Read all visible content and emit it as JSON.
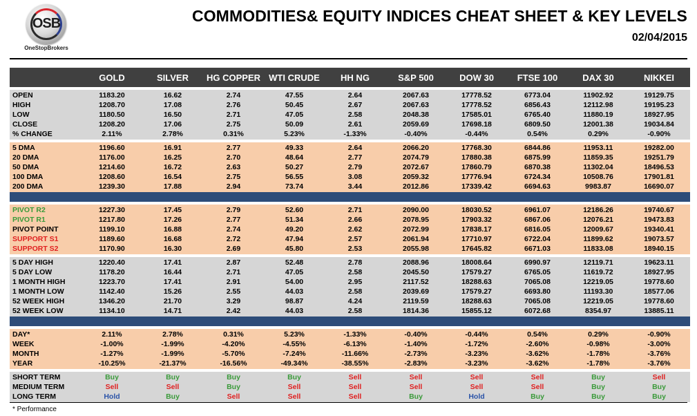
{
  "header": {
    "title": "COMMODITIES& EQUITY INDICES CHEAT SHEET & KEY LEVELS",
    "date": "02/04/2015",
    "logo_mark": "OSB",
    "logo_text": "OneStopBrokers"
  },
  "columns": [
    "GOLD",
    "SILVER",
    "HG COPPER",
    "WTI CRUDE",
    "HH NG",
    "S&P 500",
    "DOW 30",
    "FTSE 100",
    "DAX 30",
    "NIKKEI"
  ],
  "groups": [
    {
      "style": "gray",
      "rows": [
        {
          "label": "OPEN",
          "values": [
            "1183.20",
            "16.62",
            "2.74",
            "47.55",
            "2.64",
            "2067.63",
            "17778.52",
            "6773.04",
            "11902.92",
            "19129.75"
          ]
        },
        {
          "label": "HIGH",
          "values": [
            "1208.70",
            "17.08",
            "2.76",
            "50.45",
            "2.67",
            "2067.63",
            "17778.52",
            "6856.43",
            "12112.98",
            "19195.23"
          ]
        },
        {
          "label": "LOW",
          "values": [
            "1180.50",
            "16.50",
            "2.71",
            "47.05",
            "2.58",
            "2048.38",
            "17585.01",
            "6765.40",
            "11880.19",
            "18927.95"
          ]
        },
        {
          "label": "CLOSE",
          "values": [
            "1208.20",
            "17.06",
            "2.75",
            "50.09",
            "2.61",
            "2059.69",
            "17698.18",
            "6809.50",
            "12001.38",
            "19034.84"
          ]
        },
        {
          "label": "% CHANGE",
          "values": [
            "2.11%",
            "2.78%",
            "0.31%",
            "5.23%",
            "-1.33%",
            "-0.40%",
            "-0.44%",
            "0.54%",
            "0.29%",
            "-0.90%"
          ]
        }
      ]
    },
    {
      "style": "peach",
      "rows": [
        {
          "label": "5 DMA",
          "values": [
            "1196.60",
            "16.91",
            "2.77",
            "49.33",
            "2.64",
            "2066.20",
            "17768.30",
            "6844.86",
            "11953.11",
            "19282.00"
          ]
        },
        {
          "label": "20 DMA",
          "values": [
            "1176.00",
            "16.25",
            "2.70",
            "48.64",
            "2.77",
            "2074.79",
            "17880.38",
            "6875.99",
            "11859.35",
            "19251.79"
          ]
        },
        {
          "label": "50 DMA",
          "values": [
            "1214.60",
            "16.72",
            "2.63",
            "50.27",
            "2.79",
            "2072.67",
            "17860.79",
            "6870.38",
            "11302.04",
            "18496.53"
          ]
        },
        {
          "label": "100 DMA",
          "values": [
            "1208.60",
            "16.54",
            "2.75",
            "56.55",
            "3.08",
            "2059.32",
            "17776.94",
            "6724.34",
            "10508.76",
            "17901.81"
          ]
        },
        {
          "label": "200 DMA",
          "values": [
            "1239.30",
            "17.88",
            "2.94",
            "73.74",
            "3.44",
            "2012.86",
            "17339.42",
            "6694.63",
            "9983.87",
            "16690.07"
          ]
        }
      ]
    },
    {
      "style": "peach",
      "sep_before": true,
      "rows": [
        {
          "label": "PIVOT R2",
          "color": "green",
          "values": [
            "1227.30",
            "17.45",
            "2.79",
            "52.60",
            "2.71",
            "2090.00",
            "18030.52",
            "6961.07",
            "12186.26",
            "19740.67"
          ]
        },
        {
          "label": "PIVOT R1",
          "color": "green",
          "values": [
            "1217.80",
            "17.26",
            "2.77",
            "51.34",
            "2.66",
            "2078.95",
            "17903.32",
            "6867.06",
            "12076.21",
            "19473.83"
          ]
        },
        {
          "label": "PIVOT POINT",
          "values": [
            "1199.10",
            "16.88",
            "2.74",
            "49.20",
            "2.62",
            "2072.99",
            "17838.17",
            "6816.05",
            "12009.67",
            "19340.41"
          ]
        },
        {
          "label": "SUPPORT S1",
          "color": "red",
          "values": [
            "1189.60",
            "16.68",
            "2.72",
            "47.94",
            "2.57",
            "2061.94",
            "17710.97",
            "6722.04",
            "11899.62",
            "19073.57"
          ]
        },
        {
          "label": "SUPPORT S2",
          "color": "red",
          "values": [
            "1170.90",
            "16.30",
            "2.69",
            "45.80",
            "2.53",
            "2055.98",
            "17645.82",
            "6671.03",
            "11833.08",
            "18940.15"
          ]
        }
      ]
    },
    {
      "style": "gray",
      "rows": [
        {
          "label": "5 DAY HIGH",
          "values": [
            "1220.40",
            "17.41",
            "2.87",
            "52.48",
            "2.78",
            "2088.96",
            "18008.64",
            "6990.97",
            "12119.71",
            "19623.11"
          ]
        },
        {
          "label": "5 DAY LOW",
          "values": [
            "1178.20",
            "16.44",
            "2.71",
            "47.05",
            "2.58",
            "2045.50",
            "17579.27",
            "6765.05",
            "11619.72",
            "18927.95"
          ]
        },
        {
          "label": "1 MONTH HIGH",
          "values": [
            "1223.70",
            "17.41",
            "2.91",
            "54.00",
            "2.95",
            "2117.52",
            "18288.63",
            "7065.08",
            "12219.05",
            "19778.60"
          ]
        },
        {
          "label": "1 MONTH LOW",
          "values": [
            "1142.40",
            "15.26",
            "2.55",
            "44.03",
            "2.58",
            "2039.69",
            "17579.27",
            "6693.80",
            "11193.30",
            "18577.06"
          ]
        },
        {
          "label": "52 WEEK HIGH",
          "values": [
            "1346.20",
            "21.70",
            "3.29",
            "98.87",
            "4.24",
            "2119.59",
            "18288.63",
            "7065.08",
            "12219.05",
            "19778.60"
          ]
        },
        {
          "label": "52 WEEK LOW",
          "values": [
            "1134.10",
            "14.71",
            "2.42",
            "44.03",
            "2.58",
            "1814.36",
            "15855.12",
            "6072.68",
            "8354.97",
            "13885.11"
          ]
        }
      ]
    },
    {
      "style": "peach",
      "sep_before": true,
      "rows": [
        {
          "label": "DAY*",
          "values": [
            "2.11%",
            "2.78%",
            "0.31%",
            "5.23%",
            "-1.33%",
            "-0.40%",
            "-0.44%",
            "0.54%",
            "0.29%",
            "-0.90%"
          ]
        },
        {
          "label": "WEEK",
          "values": [
            "-1.00%",
            "-1.99%",
            "-4.20%",
            "-4.55%",
            "-6.13%",
            "-1.40%",
            "-1.72%",
            "-2.60%",
            "-0.98%",
            "-3.00%"
          ]
        },
        {
          "label": "MONTH",
          "values": [
            "-1.27%",
            "-1.99%",
            "-5.70%",
            "-7.24%",
            "-11.66%",
            "-2.73%",
            "-3.23%",
            "-3.62%",
            "-1.78%",
            "-3.76%"
          ]
        },
        {
          "label": "YEAR",
          "values": [
            "-10.25%",
            "-21.37%",
            "-16.56%",
            "-49.34%",
            "-38.55%",
            "-2.83%",
            "-3.23%",
            "-3.62%",
            "-1.78%",
            "-3.76%"
          ]
        }
      ]
    },
    {
      "style": "gray",
      "signals": true,
      "rows": [
        {
          "label": "SHORT TERM",
          "values": [
            "Buy",
            "Buy",
            "Buy",
            "Buy",
            "Sell",
            "Sell",
            "Sell",
            "Sell",
            "Buy",
            "Sell"
          ]
        },
        {
          "label": "MEDIUM TERM",
          "values": [
            "Sell",
            "Sell",
            "Buy",
            "Sell",
            "Sell",
            "Sell",
            "Sell",
            "Sell",
            "Buy",
            "Buy"
          ]
        },
        {
          "label": "LONG TERM",
          "values": [
            "Hold",
            "Buy",
            "Sell",
            "Sell",
            "Sell",
            "Buy",
            "Hold",
            "Buy",
            "Buy",
            "Buy"
          ]
        }
      ]
    }
  ],
  "footnote": "* Performance",
  "colors": {
    "header_bg": "#404040",
    "gray": "#d6d6d6",
    "peach": "#f8cdaa",
    "separator": "#2d4c79",
    "buy": "#3a9a3a",
    "sell": "#e02020",
    "hold": "#2a53a8"
  }
}
